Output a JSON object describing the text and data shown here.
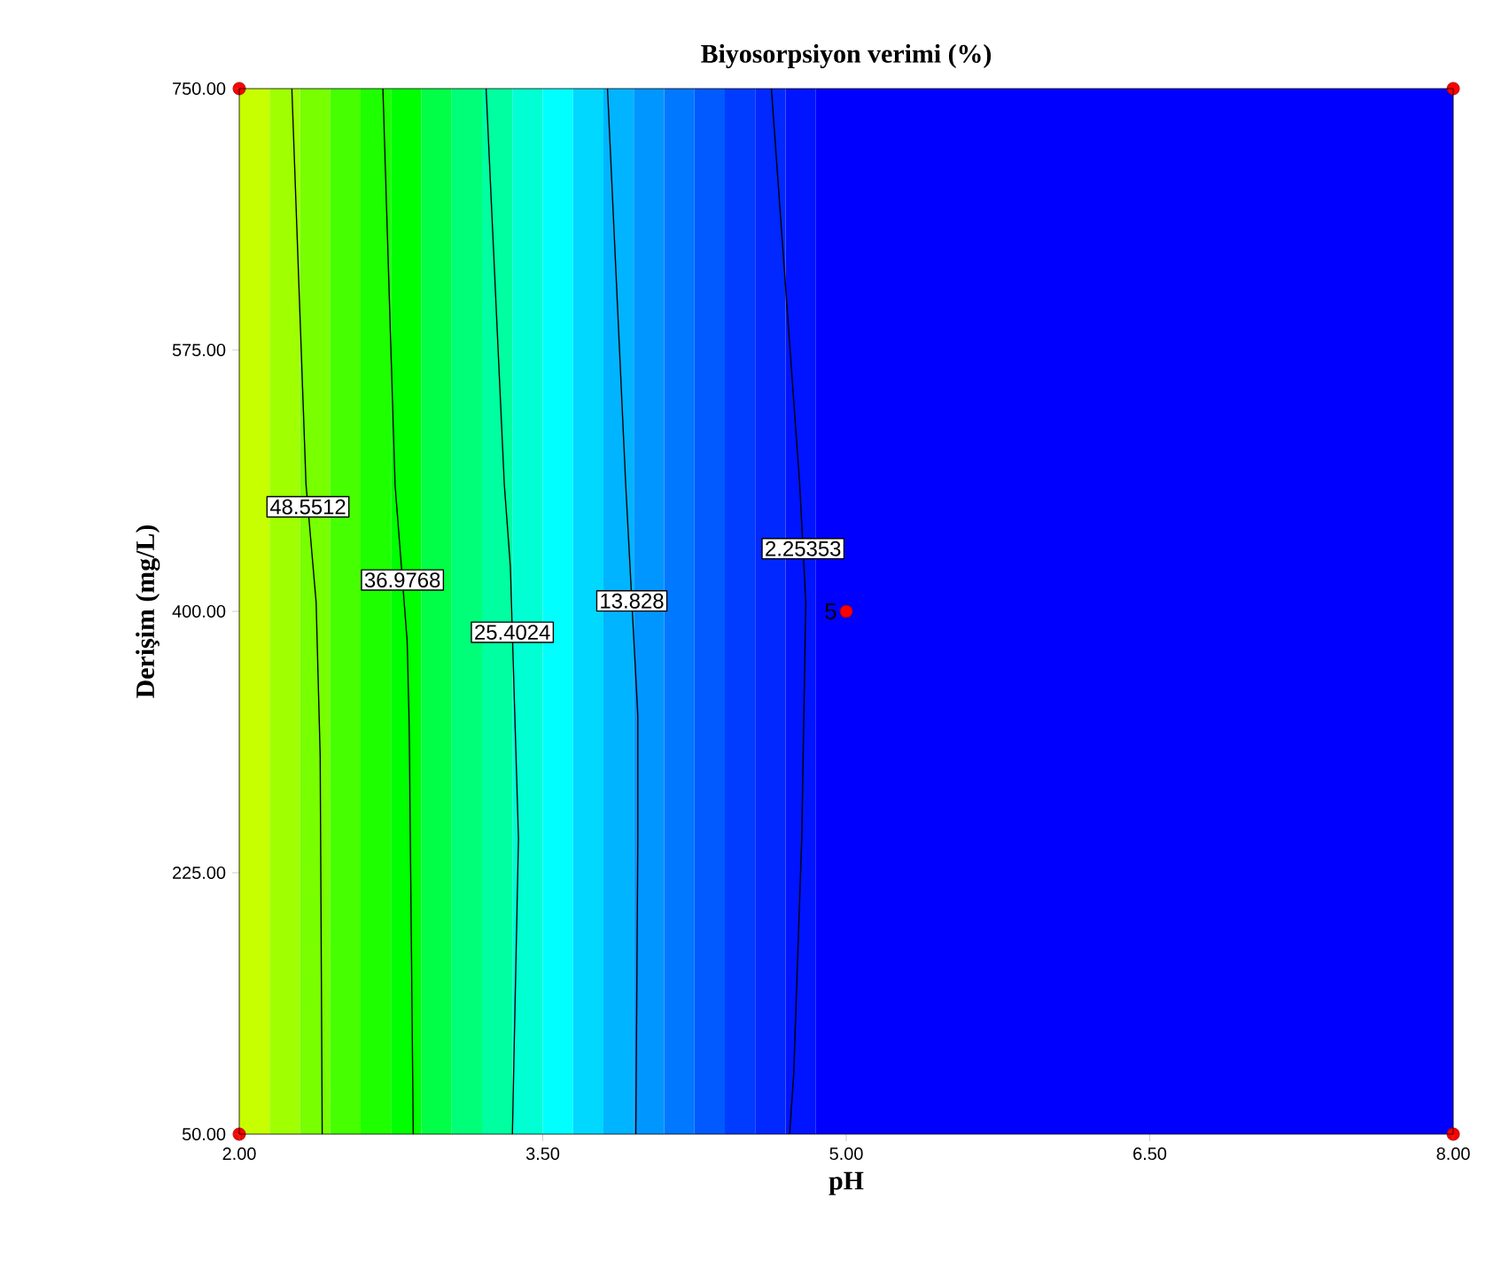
{
  "chart_data": {
    "type": "line",
    "title": "Biyosorpsiyon verimi (%)",
    "xlabel": "pH",
    "ylabel": "Derişim (mg/L)",
    "xlim": [
      2,
      8
    ],
    "ylim": [
      50,
      750
    ],
    "xticks": [
      {
        "value": 2,
        "label": "2.00"
      },
      {
        "value": 3.5,
        "label": "3.50"
      },
      {
        "value": 5,
        "label": "5.00"
      },
      {
        "value": 6.5,
        "label": "6.50"
      },
      {
        "value": 8,
        "label": "8.00"
      }
    ],
    "yticks": [
      {
        "value": 50,
        "label": "50.00"
      },
      {
        "value": 225,
        "label": "225.00"
      },
      {
        "value": 400,
        "label": "400.00"
      },
      {
        "value": 575,
        "label": "575.00"
      },
      {
        "value": 750,
        "label": "750.00"
      }
    ],
    "marker": "none",
    "line_style": "solid",
    "grid": false,
    "series": [
      {
        "name": "48.5512",
        "color": "#000000",
        "x": [
          2.26,
          2.33,
          2.38,
          2.4,
          2.41
        ],
        "values": [
          750,
          485,
          406,
          303,
          50
        ]
      },
      {
        "name": "36.9768",
        "color": "#000000",
        "x": [
          2.71,
          2.77,
          2.83,
          2.84,
          2.86
        ],
        "values": [
          750,
          485,
          380,
          323,
          50
        ]
      },
      {
        "name": "25.4024",
        "color": "#000000",
        "x": [
          3.22,
          3.31,
          3.34,
          3.38,
          3.35
        ],
        "values": [
          750,
          485,
          430,
          248,
          50
        ]
      },
      {
        "name": "13.828",
        "color": "#000000",
        "x": [
          3.82,
          3.91,
          3.97,
          3.97,
          3.96
        ],
        "values": [
          750,
          485,
          330,
          248,
          50
        ]
      },
      {
        "name": "2.25353",
        "color": "#000000",
        "x": [
          4.63,
          4.77,
          4.8,
          4.78,
          4.74,
          4.72
        ],
        "values": [
          750,
          485,
          406,
          248,
          89,
          50
        ]
      },
      {
        "type": "scatter",
        "marker": "circle",
        "color": "#ff0000",
        "x": [
          2,
          8,
          2,
          8,
          5
        ],
        "values": [
          750,
          750,
          50,
          50,
          400
        ]
      }
    ],
    "annotations": [
      {
        "text": "5",
        "x": 5,
        "y": 400
      }
    ],
    "bands": [
      {
        "axis": "x",
        "from": 2.0,
        "to": 2.15,
        "color": "#c8ff00"
      },
      {
        "axis": "x",
        "from": 2.15,
        "to": 2.3,
        "color": "#a0ff00"
      },
      {
        "axis": "x",
        "from": 2.3,
        "to": 2.45,
        "color": "#78ff00"
      },
      {
        "axis": "x",
        "from": 2.45,
        "to": 2.6,
        "color": "#46ff00"
      },
      {
        "axis": "x",
        "from": 2.6,
        "to": 2.75,
        "color": "#1eff00"
      },
      {
        "axis": "x",
        "from": 2.75,
        "to": 2.9,
        "color": "#00ff00"
      },
      {
        "axis": "x",
        "from": 2.9,
        "to": 3.05,
        "color": "#00ff46"
      },
      {
        "axis": "x",
        "from": 3.05,
        "to": 3.2,
        "color": "#00ff78"
      },
      {
        "axis": "x",
        "from": 3.2,
        "to": 3.35,
        "color": "#00ffa0"
      },
      {
        "axis": "x",
        "from": 3.35,
        "to": 3.5,
        "color": "#00ffd2"
      },
      {
        "axis": "x",
        "from": 3.5,
        "to": 3.65,
        "color": "#00ffff"
      },
      {
        "axis": "x",
        "from": 3.65,
        "to": 3.8,
        "color": "#00d8ff"
      },
      {
        "axis": "x",
        "from": 3.8,
        "to": 3.95,
        "color": "#00b4ff"
      },
      {
        "axis": "x",
        "from": 3.95,
        "to": 4.1,
        "color": "#0096ff"
      },
      {
        "axis": "x",
        "from": 4.1,
        "to": 4.25,
        "color": "#0078ff"
      },
      {
        "axis": "x",
        "from": 4.25,
        "to": 4.4,
        "color": "#005aff"
      },
      {
        "axis": "x",
        "from": 4.4,
        "to": 4.55,
        "color": "#003cff"
      },
      {
        "axis": "x",
        "from": 4.55,
        "to": 4.7,
        "color": "#0028ff"
      },
      {
        "axis": "x",
        "from": 4.7,
        "to": 4.85,
        "color": "#0014ff"
      },
      {
        "axis": "x",
        "from": 4.85,
        "to": 8.0,
        "color": "#0000ff"
      }
    ]
  }
}
